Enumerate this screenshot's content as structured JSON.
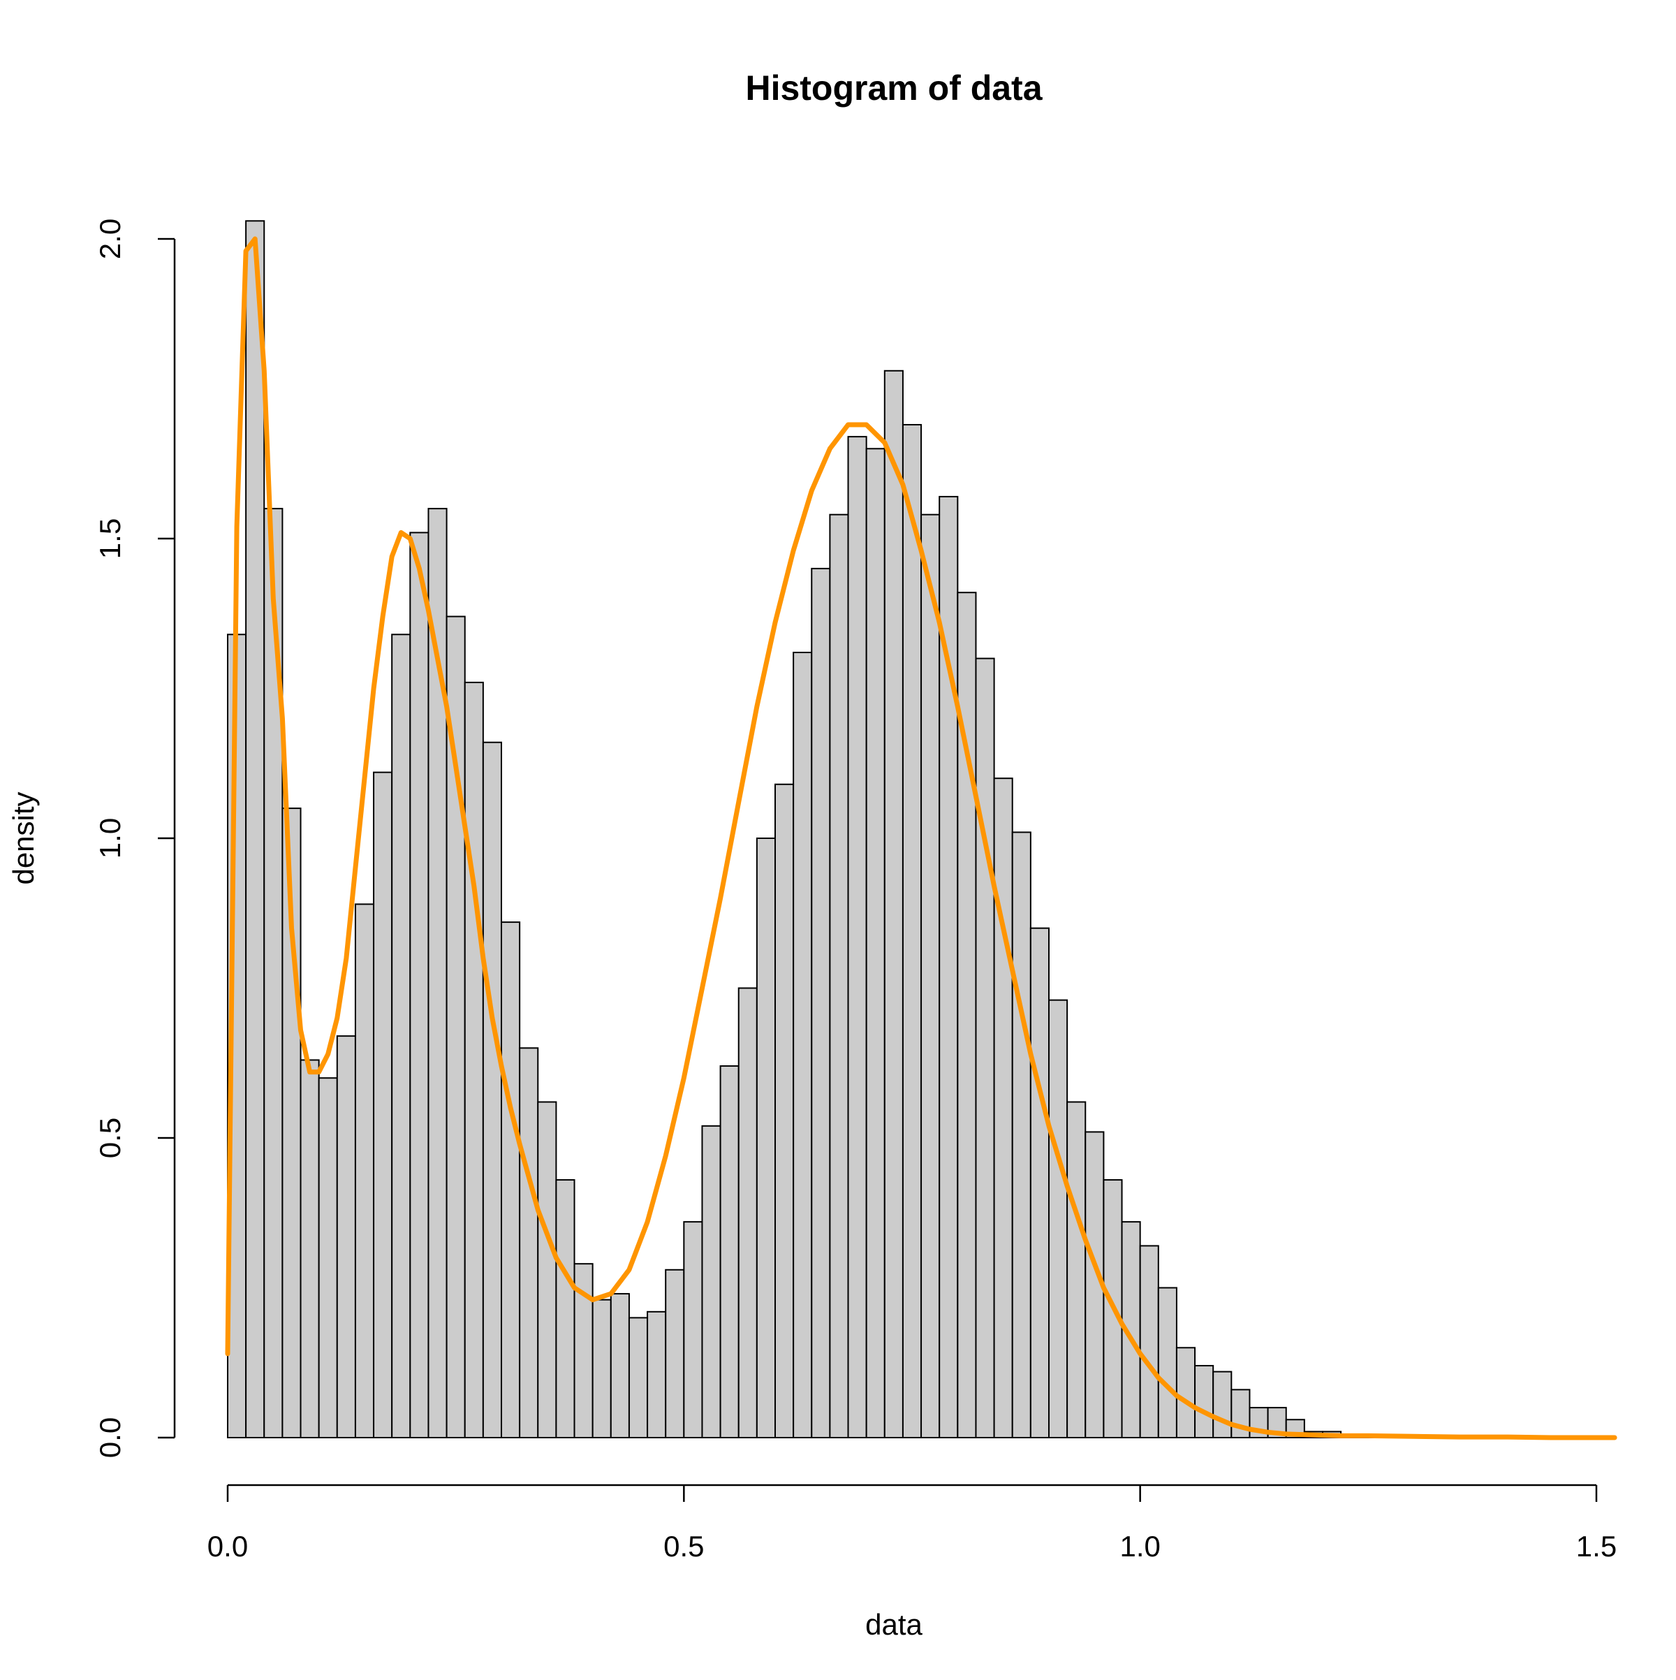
{
  "chart_data": {
    "type": "bar",
    "title": "Histogram of data",
    "xlabel": "data",
    "ylabel": "density",
    "xlim": [
      0,
      1.5
    ],
    "ylim": [
      0,
      2.0
    ],
    "grid": false,
    "x_ticks": [
      {
        "value": 0.0,
        "label": "0.0"
      },
      {
        "value": 0.5,
        "label": "0.5"
      },
      {
        "value": 1.0,
        "label": "1.0"
      },
      {
        "value": 1.5,
        "label": "1.5"
      }
    ],
    "y_ticks": [
      {
        "value": 0.0,
        "label": "0.0"
      },
      {
        "value": 0.5,
        "label": "0.5"
      },
      {
        "value": 1.0,
        "label": "1.0"
      },
      {
        "value": 1.5,
        "label": "1.5"
      },
      {
        "value": 2.0,
        "label": "2.0"
      }
    ],
    "bin_width": 0.02,
    "bin_start": 0.0,
    "densities": [
      1.34,
      2.03,
      1.55,
      1.05,
      0.63,
      0.6,
      0.67,
      0.89,
      1.11,
      1.34,
      1.51,
      1.55,
      1.37,
      1.26,
      1.16,
      0.86,
      0.65,
      0.56,
      0.43,
      0.29,
      0.23,
      0.24,
      0.2,
      0.21,
      0.28,
      0.36,
      0.52,
      0.62,
      0.75,
      1.0,
      1.09,
      1.31,
      1.45,
      1.54,
      1.67,
      1.65,
      1.78,
      1.69,
      1.54,
      1.57,
      1.41,
      1.3,
      1.1,
      1.01,
      0.85,
      0.73,
      0.56,
      0.51,
      0.43,
      0.36,
      0.32,
      0.25,
      0.15,
      0.12,
      0.11,
      0.08,
      0.05,
      0.05,
      0.03,
      0.01,
      0.01,
      0.005,
      0.004,
      0.003,
      0.003,
      0.002,
      0.002,
      0.002,
      0.003
    ],
    "density_curve": {
      "color": "#FF9500",
      "x": [
        0.0,
        0.01,
        0.02,
        0.03,
        0.04,
        0.05,
        0.06,
        0.07,
        0.08,
        0.09,
        0.1,
        0.11,
        0.12,
        0.13,
        0.14,
        0.15,
        0.16,
        0.17,
        0.18,
        0.19,
        0.2,
        0.21,
        0.22,
        0.23,
        0.24,
        0.25,
        0.26,
        0.27,
        0.28,
        0.29,
        0.3,
        0.31,
        0.32,
        0.34,
        0.36,
        0.38,
        0.4,
        0.42,
        0.44,
        0.46,
        0.48,
        0.5,
        0.52,
        0.54,
        0.56,
        0.58,
        0.6,
        0.62,
        0.64,
        0.66,
        0.68,
        0.7,
        0.72,
        0.74,
        0.76,
        0.78,
        0.8,
        0.82,
        0.84,
        0.86,
        0.88,
        0.9,
        0.92,
        0.94,
        0.96,
        0.98,
        1.0,
        1.02,
        1.04,
        1.06,
        1.08,
        1.1,
        1.12,
        1.14,
        1.16,
        1.18,
        1.2,
        1.22,
        1.25,
        1.3,
        1.35,
        1.4,
        1.45,
        1.5,
        1.52
      ],
      "y": [
        0.14,
        1.52,
        1.98,
        2.0,
        1.78,
        1.4,
        1.2,
        0.85,
        0.68,
        0.61,
        0.61,
        0.64,
        0.7,
        0.8,
        0.95,
        1.1,
        1.25,
        1.37,
        1.47,
        1.51,
        1.5,
        1.45,
        1.38,
        1.3,
        1.22,
        1.12,
        1.02,
        0.92,
        0.8,
        0.7,
        0.62,
        0.55,
        0.49,
        0.38,
        0.3,
        0.25,
        0.23,
        0.24,
        0.28,
        0.36,
        0.47,
        0.6,
        0.75,
        0.9,
        1.06,
        1.22,
        1.36,
        1.48,
        1.58,
        1.65,
        1.69,
        1.69,
        1.66,
        1.59,
        1.48,
        1.36,
        1.22,
        1.07,
        0.92,
        0.78,
        0.64,
        0.52,
        0.42,
        0.33,
        0.25,
        0.19,
        0.14,
        0.1,
        0.07,
        0.05,
        0.035,
        0.022,
        0.014,
        0.009,
        0.006,
        0.005,
        0.004,
        0.003,
        0.003,
        0.002,
        0.001,
        0.001,
        0.0,
        0.0,
        0.0
      ]
    }
  }
}
